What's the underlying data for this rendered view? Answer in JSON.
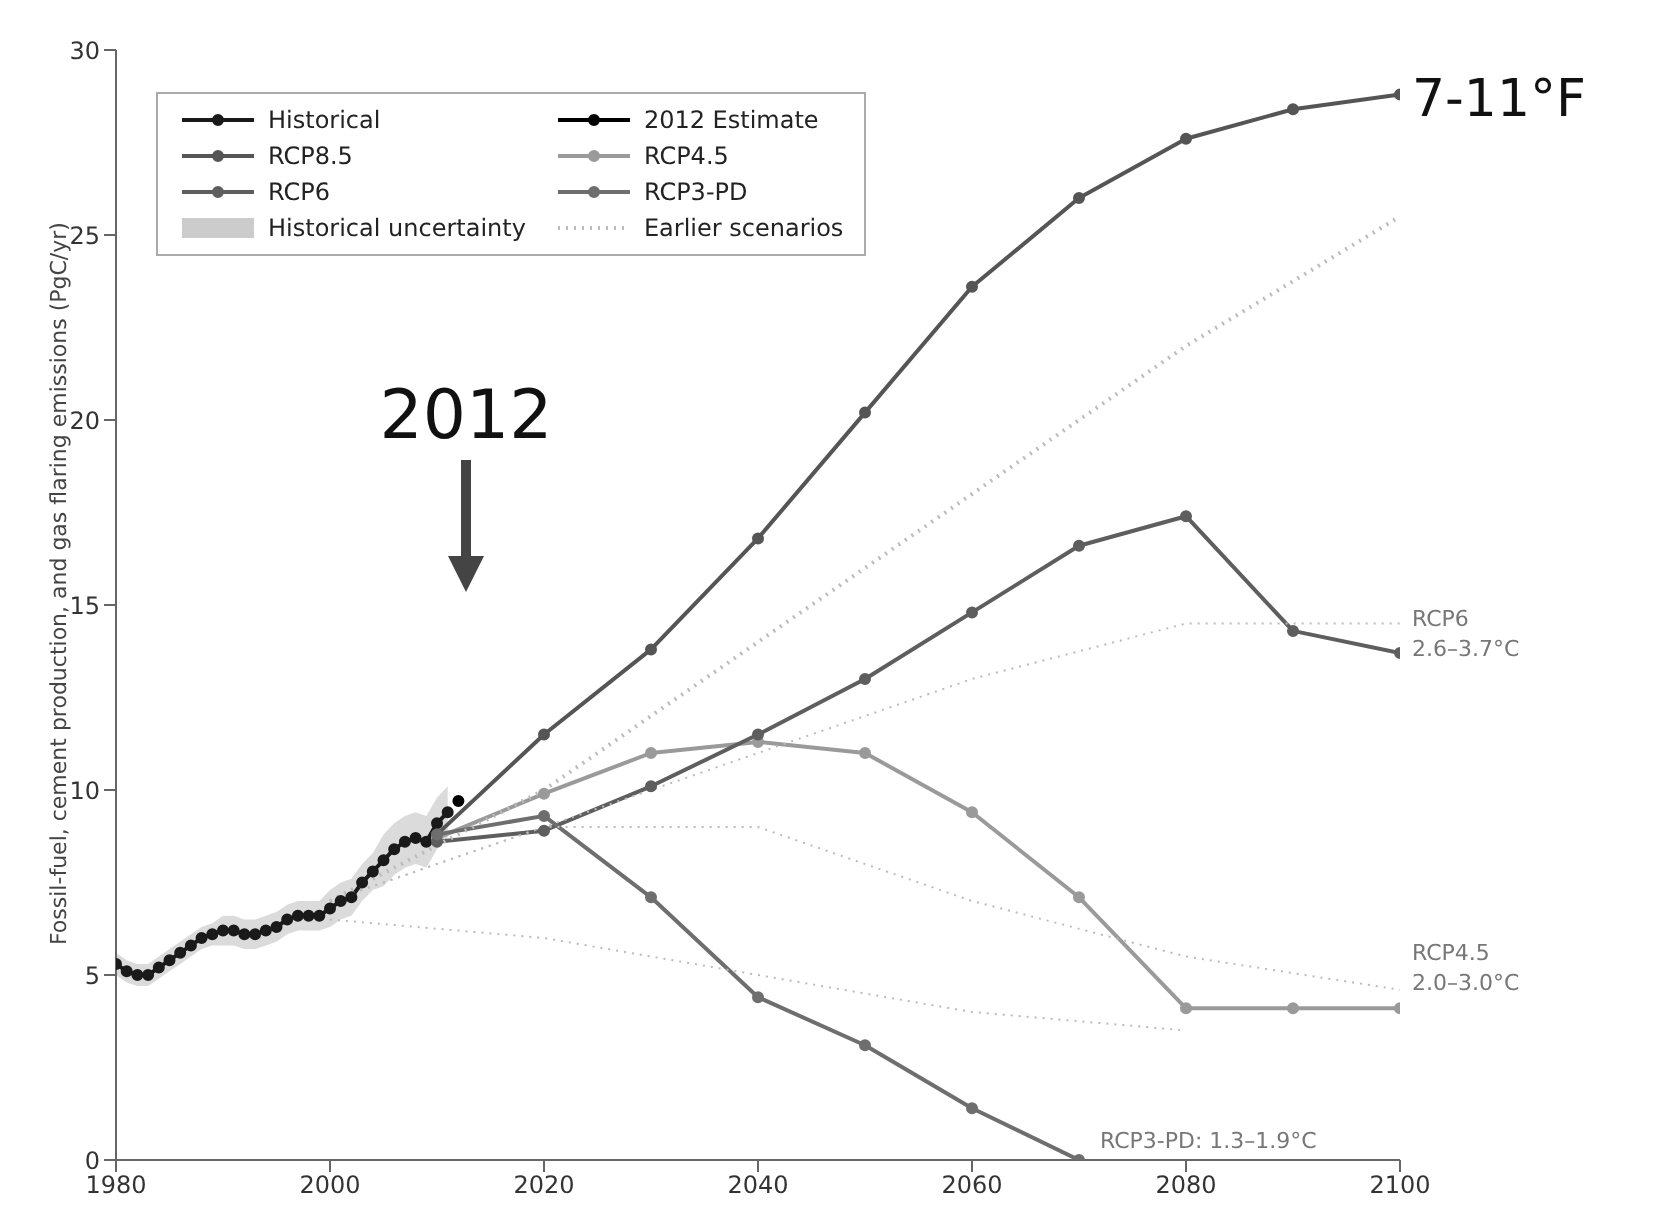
{
  "chart_data": {
    "type": "line",
    "ylabel": "Fossil-fuel, cement production, and gas flaring emissions (PgC/yr)",
    "xlim": [
      1980,
      2100
    ],
    "xticks": [
      1980,
      2000,
      2020,
      2040,
      2060,
      2080,
      2100
    ],
    "ylim": [
      0,
      30
    ],
    "yticks": [
      0,
      5,
      10,
      15,
      20,
      25,
      30
    ],
    "grid": false,
    "legend": "top left",
    "marker": "circle",
    "line_style": "solid",
    "series": [
      {
        "name": "Historical",
        "color": "#1a1a1a",
        "x": [
          1980,
          1981,
          1982,
          1983,
          1984,
          1985,
          1986,
          1987,
          1988,
          1989,
          1990,
          1991,
          1992,
          1993,
          1994,
          1995,
          1996,
          1997,
          1998,
          1999,
          2000,
          2001,
          2002,
          2003,
          2004,
          2005,
          2006,
          2007,
          2008,
          2009,
          2010,
          2011
        ],
        "values": [
          5.3,
          5.1,
          5.0,
          5.0,
          5.2,
          5.4,
          5.6,
          5.8,
          6.0,
          6.1,
          6.2,
          6.2,
          6.1,
          6.1,
          6.2,
          6.3,
          6.5,
          6.6,
          6.6,
          6.6,
          6.8,
          7.0,
          7.1,
          7.5,
          7.8,
          8.1,
          8.4,
          8.6,
          8.7,
          8.6,
          9.1,
          9.4
        ],
        "lower": [
          5.0,
          4.8,
          4.7,
          4.7,
          4.9,
          5.1,
          5.3,
          5.5,
          5.7,
          5.8,
          5.8,
          5.8,
          5.7,
          5.7,
          5.8,
          5.9,
          6.1,
          6.2,
          6.2,
          6.2,
          6.3,
          6.5,
          6.6,
          7.0,
          7.3,
          7.4,
          7.7,
          7.9,
          8.0,
          7.9,
          8.4,
          8.7
        ],
        "upper": [
          5.6,
          5.4,
          5.3,
          5.3,
          5.5,
          5.7,
          5.9,
          6.1,
          6.3,
          6.4,
          6.6,
          6.6,
          6.5,
          6.5,
          6.6,
          6.7,
          6.9,
          7.0,
          7.0,
          7.0,
          7.3,
          7.5,
          7.6,
          8.0,
          8.3,
          8.8,
          9.1,
          9.3,
          9.4,
          9.3,
          9.8,
          10.1
        ]
      },
      {
        "name": "2012 Estimate",
        "color": "#000000",
        "x": [
          2012
        ],
        "values": [
          9.7
        ]
      },
      {
        "name": "RCP8.5",
        "color": "#555555",
        "x": [
          2010,
          2020,
          2030,
          2040,
          2050,
          2060,
          2070,
          2080,
          2090,
          2100
        ],
        "values": [
          8.8,
          11.5,
          13.8,
          16.8,
          20.2,
          23.6,
          26.0,
          27.6,
          28.4,
          28.8
        ]
      },
      {
        "name": "RCP4.5",
        "color": "#9a9a9a",
        "x": [
          2010,
          2020,
          2030,
          2040,
          2050,
          2060,
          2070,
          2080,
          2090,
          2100
        ],
        "values": [
          8.7,
          9.9,
          11.0,
          11.3,
          11.0,
          9.4,
          7.1,
          4.1,
          4.1,
          4.1
        ]
      },
      {
        "name": "RCP6",
        "color": "#5e5e5e",
        "x": [
          2010,
          2020,
          2030,
          2040,
          2050,
          2060,
          2070,
          2080,
          2090,
          2100
        ],
        "values": [
          8.6,
          8.9,
          10.1,
          11.5,
          13.0,
          14.8,
          16.6,
          17.4,
          14.3,
          13.7
        ]
      },
      {
        "name": "RCP3-PD",
        "color": "#6e6e6e",
        "x": [
          2010,
          2020,
          2030,
          2040,
          2050,
          2060,
          2070
        ],
        "values": [
          8.8,
          9.3,
          7.1,
          4.4,
          3.1,
          1.4,
          0
        ]
      },
      {
        "name": "Earlier scenarios",
        "color": "#bbbbbb",
        "marker": "none",
        "line_style": "dotted",
        "x": [
          2000,
          2020,
          2040,
          2060,
          2080,
          2100
        ],
        "values": [
          7,
          10,
          14,
          18,
          22,
          25.5
        ]
      },
      {
        "color": "#bbbbbb",
        "marker": "none",
        "line_style": "dotted",
        "x": [
          2000,
          2020,
          2040,
          2060,
          2080,
          2100
        ],
        "values": [
          7,
          9,
          11,
          13,
          14.5,
          14.5
        ]
      },
      {
        "color": "#bbbbbb",
        "marker": "none",
        "line_style": "dotted",
        "x": [
          2000,
          2020,
          2040,
          2060,
          2080,
          2100
        ],
        "values": [
          7,
          9,
          9,
          7,
          5.5,
          4.6
        ]
      },
      {
        "color": "#bbbbbb",
        "marker": "none",
        "line_style": "dotted",
        "x": [
          2000,
          2020,
          2040,
          2060,
          2080
        ],
        "values": [
          6.5,
          6,
          5,
          4,
          3.5
        ]
      }
    ],
    "annotations": [
      "2012",
      "7-11°F",
      "RCP6\n2.6–3.7°C",
      "RCP4.5\n2.0–3.0°C",
      "RCP3-PD: 1.3–1.9°C",
      "Historical uncertainty"
    ]
  }
}
